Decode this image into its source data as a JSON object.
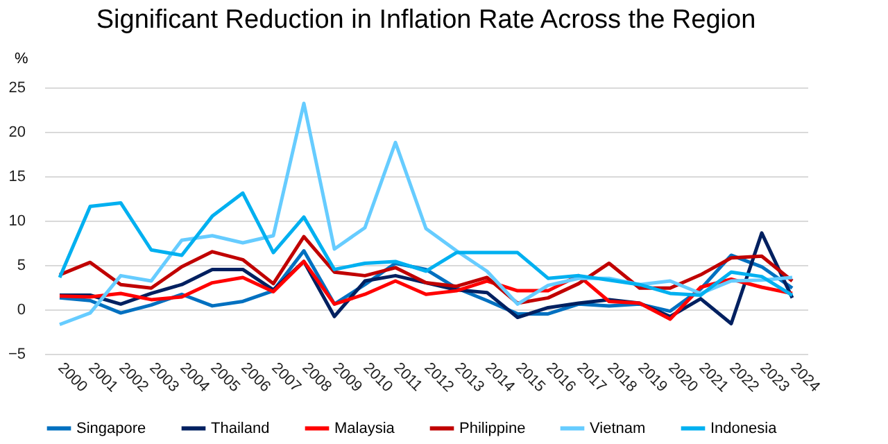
{
  "chart_data": {
    "type": "line",
    "title": "Significant Reduction in Inflation Rate Across the Region",
    "ylabel": "%",
    "categories": [
      "2000",
      "2001",
      "2002",
      "2003",
      "2004",
      "2005",
      "2006",
      "2007",
      "2008",
      "2009",
      "2010",
      "2011",
      "2012",
      "2013",
      "2014",
      "2015",
      "2016",
      "2017",
      "2018",
      "2019",
      "2020",
      "2021",
      "2022",
      "2023",
      "2024"
    ],
    "series": [
      {
        "name": "Singapore",
        "color": "#0070c0",
        "values": [
          1.3,
          1.0,
          -0.4,
          0.5,
          1.7,
          0.4,
          0.9,
          2.1,
          6.6,
          0.6,
          2.8,
          5.2,
          4.5,
          2.4,
          1.0,
          -0.5,
          -0.5,
          0.6,
          0.4,
          0.6,
          -0.2,
          2.3,
          6.1,
          4.8,
          2.4
        ]
      },
      {
        "name": "Thailand",
        "color": "#002060",
        "values": [
          1.6,
          1.6,
          0.6,
          1.8,
          2.8,
          4.5,
          4.5,
          2.2,
          5.4,
          -0.8,
          3.2,
          3.8,
          3.0,
          2.2,
          1.9,
          -0.9,
          0.2,
          0.7,
          1.1,
          0.7,
          -0.8,
          1.2,
          -1.6,
          8.6,
          1.3
        ]
      },
      {
        "name": "Malaysia",
        "color": "#ff0000",
        "values": [
          1.5,
          1.4,
          1.8,
          1.1,
          1.4,
          3.0,
          3.6,
          2.0,
          5.4,
          0.6,
          1.7,
          3.2,
          1.7,
          2.1,
          3.2,
          2.1,
          2.1,
          3.8,
          0.9,
          0.7,
          -1.1,
          2.5,
          3.4,
          2.5,
          1.8
        ]
      },
      {
        "name": "Philippine",
        "color": "#c00000",
        "values": [
          3.9,
          5.3,
          2.8,
          2.4,
          4.8,
          6.5,
          5.6,
          2.9,
          8.2,
          4.2,
          3.8,
          4.7,
          3.0,
          2.6,
          3.6,
          0.7,
          1.3,
          2.9,
          5.2,
          2.4,
          2.4,
          3.9,
          5.8,
          6.0,
          3.2
        ]
      },
      {
        "name": "Vietnam",
        "color": "#66ccff",
        "values": [
          -1.7,
          -0.4,
          3.8,
          3.2,
          7.8,
          8.3,
          7.5,
          8.3,
          23.2,
          6.8,
          9.2,
          18.8,
          9.1,
          6.6,
          4.3,
          0.6,
          2.7,
          3.5,
          3.5,
          2.8,
          3.2,
          1.8,
          3.2,
          3.3,
          3.6
        ]
      },
      {
        "name": "Indonesia",
        "color": "#00b0f0",
        "values": [
          3.6,
          11.6,
          12.0,
          6.7,
          6.1,
          10.5,
          13.1,
          6.4,
          10.4,
          4.5,
          5.2,
          5.4,
          4.3,
          6.4,
          6.4,
          6.4,
          3.5,
          3.8,
          3.3,
          2.8,
          1.8,
          1.6,
          4.2,
          3.7,
          1.6
        ]
      }
    ],
    "ylim": [
      -5,
      25
    ],
    "yticks": [
      -5,
      0,
      5,
      10,
      15,
      20,
      25
    ],
    "grid": "y",
    "legend": "bottom",
    "line_style": "solid",
    "marker": "none"
  }
}
